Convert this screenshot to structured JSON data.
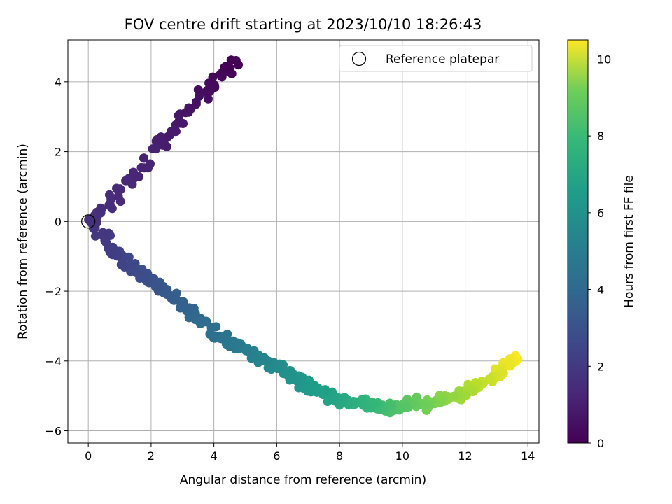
{
  "chart_data": {
    "type": "scatter",
    "title": "FOV centre drift starting at 2023/10/10 18:26:43",
    "xlabel": "Angular distance from reference (arcmin)",
    "ylabel": "Rotation from reference (arcmin)",
    "xlim": [
      -0.65,
      14.35
    ],
    "ylim": [
      -6.35,
      5.2
    ],
    "xticks": [
      0,
      2,
      4,
      6,
      8,
      10,
      12,
      14
    ],
    "yticks": [
      -6,
      -4,
      -2,
      0,
      2,
      4
    ],
    "grid": true,
    "colormap": "viridis",
    "colorbar": {
      "label": "Hours from first FF file",
      "range": [
        0,
        10.5
      ],
      "ticks": [
        0,
        2,
        4,
        6,
        8,
        10
      ]
    },
    "legend": {
      "position": "top-right",
      "entries": [
        {
          "label": "Reference platepar",
          "marker": "open-circle"
        }
      ]
    },
    "reference_point": {
      "x": 0,
      "y": 0
    },
    "drift_trend": {
      "description": "upper branch from (0,0) to (4.7,4.6) at 0-1.5 h; lower branch from (0,0) curving through (4,-3.2), (8,-5.1), (10,-5.3), to (13.6,-3.9) at 1.5-10.5 h",
      "upper_anchors": [
        [
          0.1,
          0.0,
          1.5
        ],
        [
          1.0,
          0.9,
          1.25
        ],
        [
          2.0,
          1.9,
          1.0
        ],
        [
          3.0,
          2.9,
          0.65
        ],
        [
          4.0,
          3.9,
          0.3
        ],
        [
          4.7,
          4.6,
          0.0
        ]
      ],
      "lower_anchors": [
        [
          0.1,
          0.0,
          1.5
        ],
        [
          1.0,
          -1.0,
          2.1
        ],
        [
          2.0,
          -1.7,
          2.7
        ],
        [
          3.0,
          -2.4,
          3.3
        ],
        [
          4.0,
          -3.2,
          3.9
        ],
        [
          5.0,
          -3.7,
          4.5
        ],
        [
          6.0,
          -4.2,
          5.1
        ],
        [
          7.0,
          -4.7,
          5.7
        ],
        [
          8.0,
          -5.1,
          6.3
        ],
        [
          9.0,
          -5.3,
          7.0
        ],
        [
          10.0,
          -5.3,
          7.7
        ],
        [
          11.0,
          -5.2,
          8.4
        ],
        [
          12.0,
          -4.9,
          9.1
        ],
        [
          13.0,
          -4.4,
          9.9
        ],
        [
          13.6,
          -3.9,
          10.5
        ]
      ]
    }
  }
}
